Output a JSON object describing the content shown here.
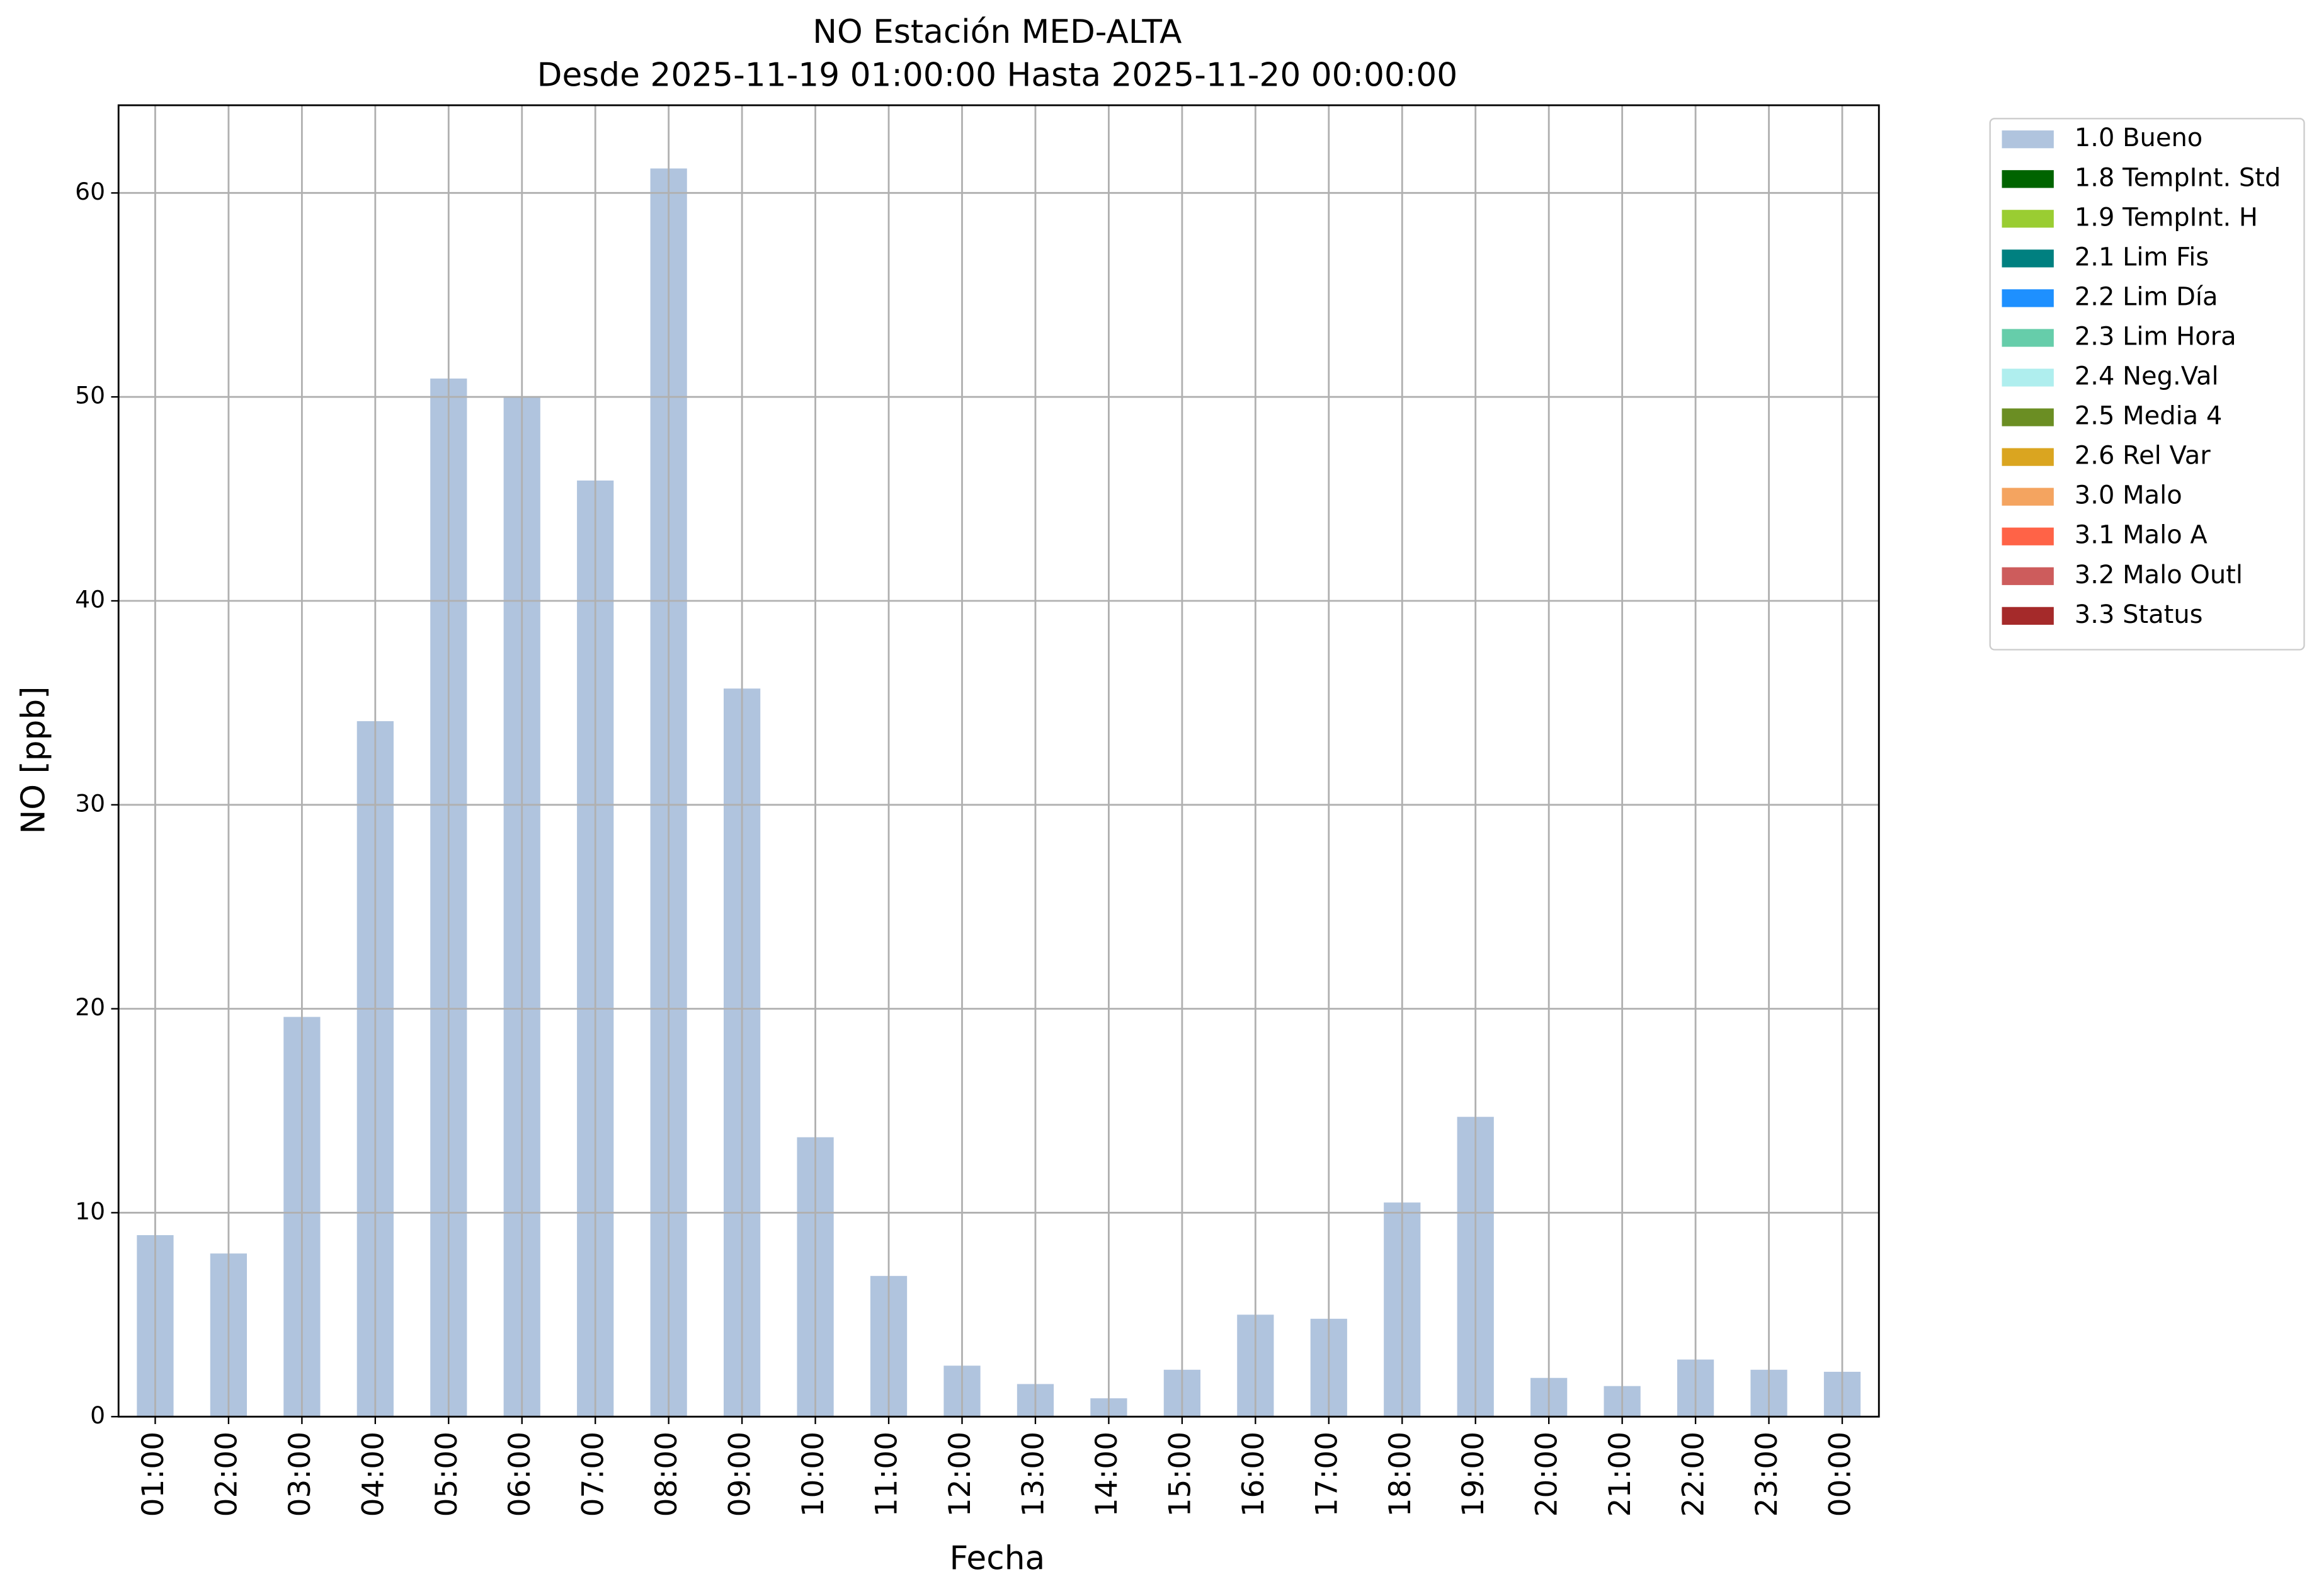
{
  "chart_data": {
    "type": "bar",
    "title": "NO Estación MED-ALTA",
    "subtitle": "Desde 2025-11-19 01:00:00 Hasta 2025-11-20 00:00:00",
    "x_label": "Fecha",
    "y_label": "NO [ppb]",
    "categories": [
      "01:00",
      "02:00",
      "03:00",
      "04:00",
      "05:00",
      "06:00",
      "07:00",
      "08:00",
      "09:00",
      "10:00",
      "11:00",
      "12:00",
      "13:00",
      "14:00",
      "15:00",
      "16:00",
      "17:00",
      "18:00",
      "19:00",
      "20:00",
      "21:00",
      "22:00",
      "23:00",
      "00:00"
    ],
    "series": [
      {
        "name": "1.0 Bueno",
        "color": "#b0c4de",
        "values": [
          8.9,
          8.0,
          19.6,
          34.1,
          50.9,
          50.0,
          45.9,
          61.2,
          35.7,
          13.7,
          6.9,
          2.5,
          1.6,
          0.9,
          2.3,
          5.0,
          4.8,
          10.5,
          14.7,
          1.9,
          1.5,
          2.8,
          2.3,
          2.2
        ]
      },
      {
        "name": "1.8 TempInt. Std",
        "color": "#006400",
        "values": [
          null,
          null,
          null,
          null,
          null,
          null,
          null,
          null,
          null,
          null,
          null,
          null,
          null,
          null,
          null,
          null,
          null,
          null,
          null,
          null,
          null,
          null,
          null,
          null
        ]
      },
      {
        "name": "1.9 TempInt. H",
        "color": "#9acd32",
        "values": [
          null,
          null,
          null,
          null,
          null,
          null,
          null,
          null,
          null,
          null,
          null,
          null,
          null,
          null,
          null,
          null,
          null,
          null,
          null,
          null,
          null,
          null,
          null,
          null
        ]
      },
      {
        "name": "2.1 Lim Fis",
        "color": "#008080",
        "values": [
          null,
          null,
          null,
          null,
          null,
          null,
          null,
          null,
          null,
          null,
          null,
          null,
          null,
          null,
          null,
          null,
          null,
          null,
          null,
          null,
          null,
          null,
          null,
          null
        ]
      },
      {
        "name": "2.2 Lim Día",
        "color": "#1e90ff",
        "values": [
          null,
          null,
          null,
          null,
          null,
          null,
          null,
          null,
          null,
          null,
          null,
          null,
          null,
          null,
          null,
          null,
          null,
          null,
          null,
          null,
          null,
          null,
          null,
          null
        ]
      },
      {
        "name": "2.3 Lim Hora",
        "color": "#66cdaa",
        "values": [
          null,
          null,
          null,
          null,
          null,
          null,
          null,
          null,
          null,
          null,
          null,
          null,
          null,
          null,
          null,
          null,
          null,
          null,
          null,
          null,
          null,
          null,
          null,
          null
        ]
      },
      {
        "name": "2.4 Neg.Val",
        "color": "#afeeee",
        "values": [
          null,
          null,
          null,
          null,
          null,
          null,
          null,
          null,
          null,
          null,
          null,
          null,
          null,
          null,
          null,
          null,
          null,
          null,
          null,
          null,
          null,
          null,
          null,
          null
        ]
      },
      {
        "name": "2.5 Media 4",
        "color": "#6b8e23",
        "values": [
          null,
          null,
          null,
          null,
          null,
          null,
          null,
          null,
          null,
          null,
          null,
          null,
          null,
          null,
          null,
          null,
          null,
          null,
          null,
          null,
          null,
          null,
          null,
          null
        ]
      },
      {
        "name": "2.6 Rel Var",
        "color": "#daa520",
        "values": [
          null,
          null,
          null,
          null,
          null,
          null,
          null,
          null,
          null,
          null,
          null,
          null,
          null,
          null,
          null,
          null,
          null,
          null,
          null,
          null,
          null,
          null,
          null,
          null
        ]
      },
      {
        "name": "3.0 Malo",
        "color": "#f4a460",
        "values": [
          null,
          null,
          null,
          null,
          null,
          null,
          null,
          null,
          null,
          null,
          null,
          null,
          null,
          null,
          null,
          null,
          null,
          null,
          null,
          null,
          null,
          null,
          null,
          null
        ]
      },
      {
        "name": "3.1 Malo A",
        "color": "#ff6347",
        "values": [
          null,
          null,
          null,
          null,
          null,
          null,
          null,
          null,
          null,
          null,
          null,
          null,
          null,
          null,
          null,
          null,
          null,
          null,
          null,
          null,
          null,
          null,
          null,
          null
        ]
      },
      {
        "name": "3.2 Malo Outl",
        "color": "#cd5c5c",
        "values": [
          null,
          null,
          null,
          null,
          null,
          null,
          null,
          null,
          null,
          null,
          null,
          null,
          null,
          null,
          null,
          null,
          null,
          null,
          null,
          null,
          null,
          null,
          null,
          null
        ]
      },
      {
        "name": "3.3 Status",
        "color": "#a52a2a",
        "values": [
          null,
          null,
          null,
          null,
          null,
          null,
          null,
          null,
          null,
          null,
          null,
          null,
          null,
          null,
          null,
          null,
          null,
          null,
          null,
          null,
          null,
          null,
          null,
          null
        ]
      }
    ],
    "ylim": [
      0,
      64.3
    ],
    "yticks": [
      0,
      10,
      20,
      30,
      40,
      50,
      60
    ],
    "grid": true,
    "legend": "outside upper right"
  }
}
